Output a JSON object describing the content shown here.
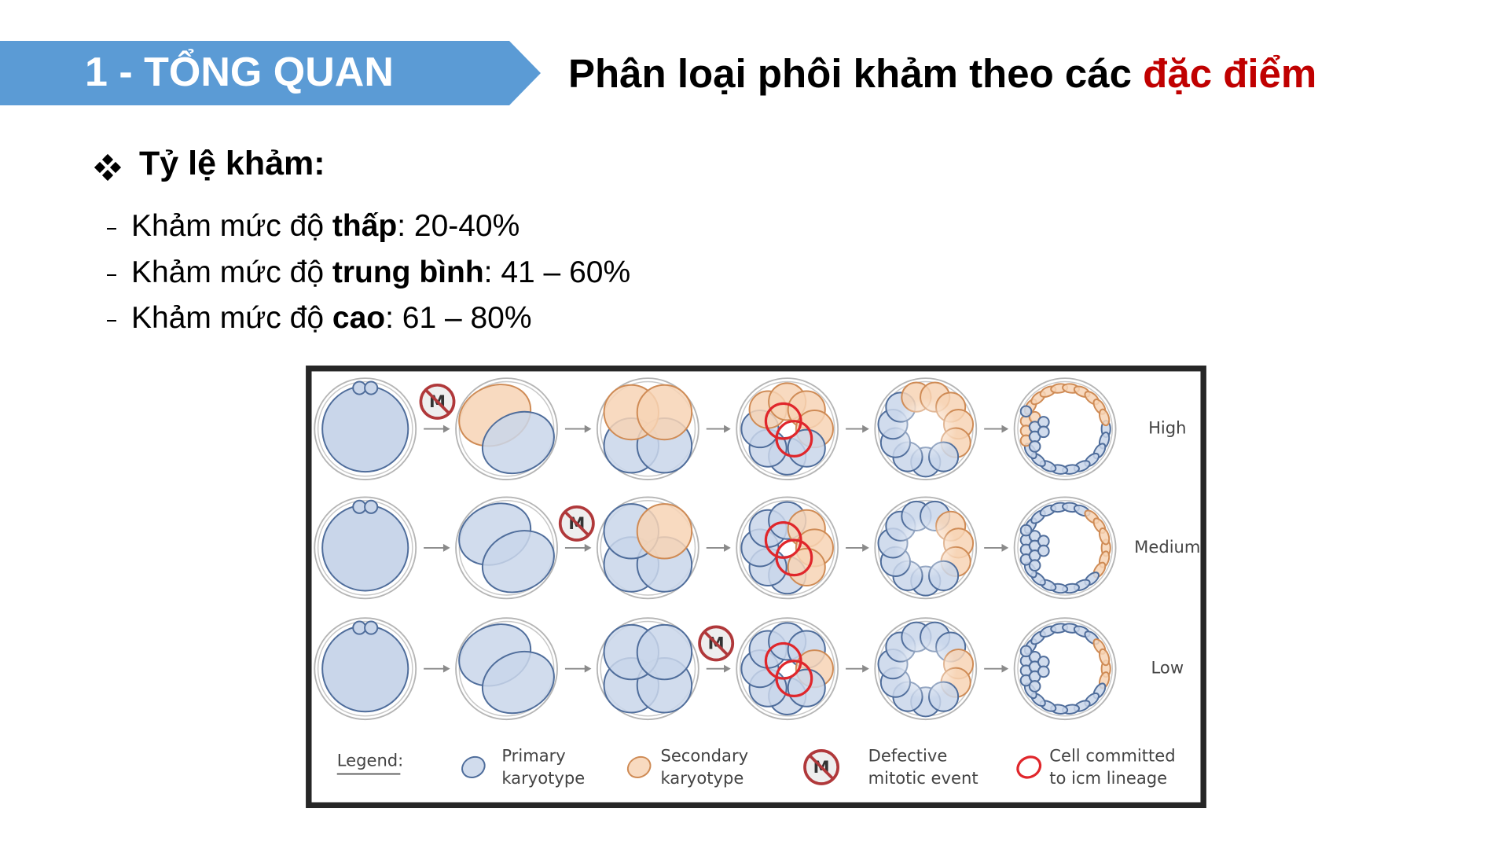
{
  "header": {
    "section": "1 - TỔNG QUAN",
    "title": "Phân loại phôi khảm theo các ",
    "title_highlight": "đặc điểm"
  },
  "content": {
    "heading": "Tỷ lệ khảm:",
    "items": [
      {
        "text": "Khảm mức độ ",
        "emphasis": "thấp",
        "suffix": ": 20-40%"
      },
      {
        "text": "Khảm mức độ ",
        "emphasis": "trung bình",
        "suffix": ": 41 – 60%"
      },
      {
        "text": "Khảm mức độ ",
        "emphasis": "cao",
        "suffix": ": 61 – 80%"
      }
    ]
  },
  "figure": {
    "rows": [
      "High",
      "Medium",
      "Low"
    ],
    "defect_symbol": "M",
    "legend": {
      "title": "Legend:",
      "entries": [
        [
          "Primary",
          "karyotype"
        ],
        [
          "Secondary",
          "karyotype"
        ],
        [
          "Defective",
          "mitotic event"
        ],
        [
          "Cell committed",
          "to icm lineage"
        ]
      ]
    }
  }
}
